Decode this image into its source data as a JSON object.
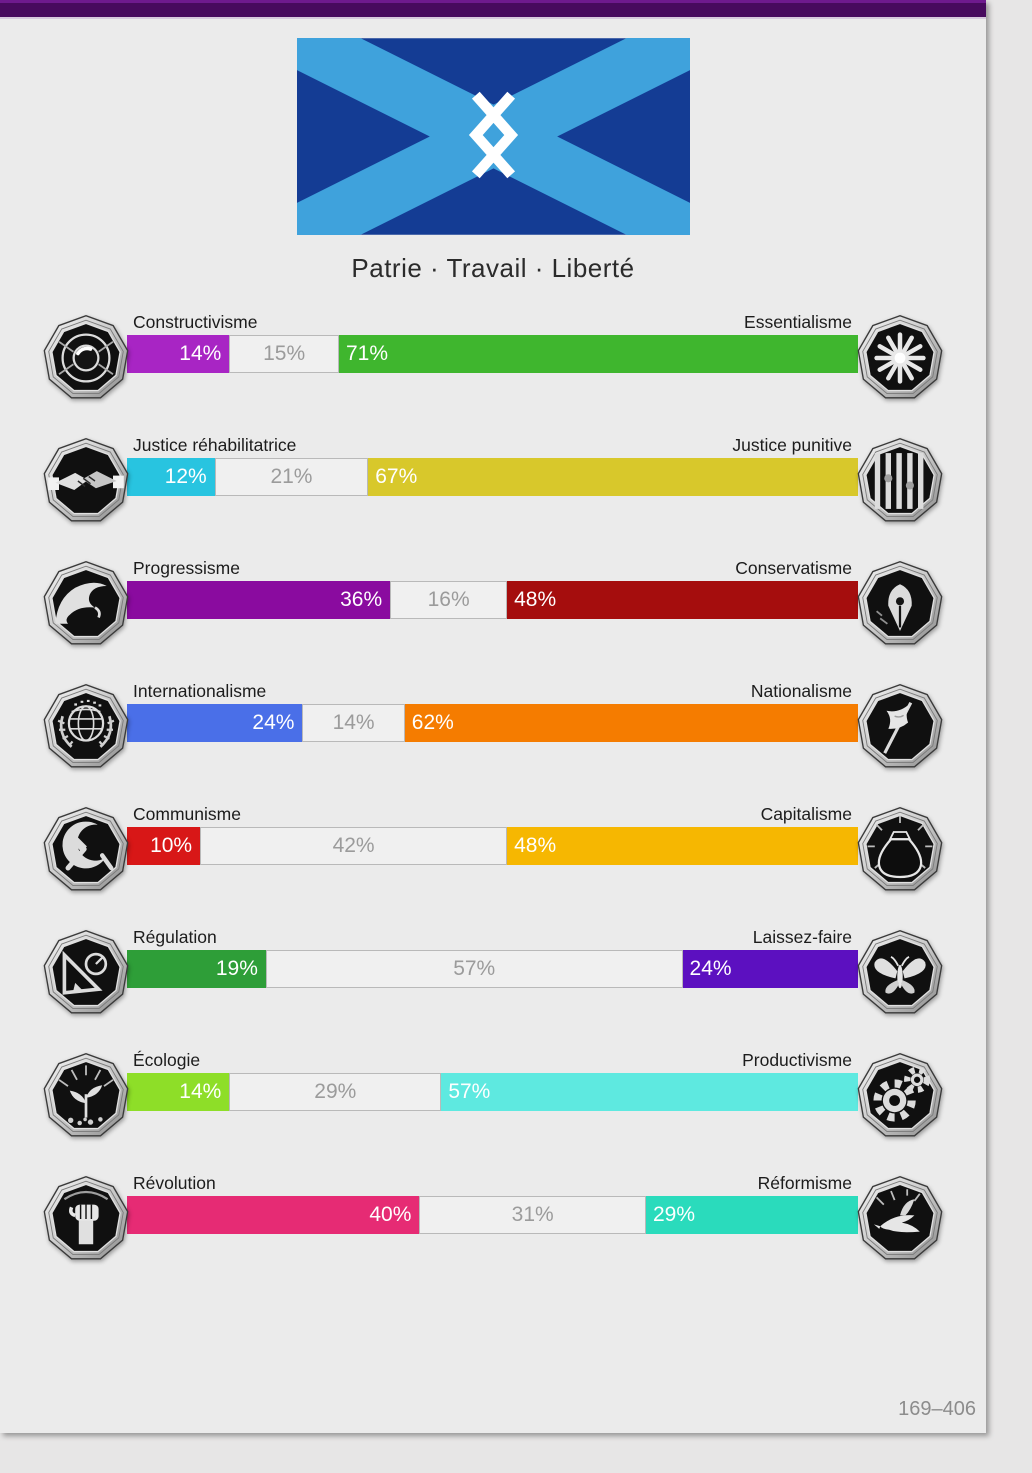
{
  "motto": "Patrie · Travail · Liberté",
  "flag": {
    "name": "nation-flag-saltire-with-double-chevron-emblem",
    "field_color": "#143c94",
    "saltire_color": "#3fa2dc",
    "emblem_color": "#ffffff"
  },
  "footer": {
    "counter": "169–406"
  },
  "chart_data": {
    "type": "bar",
    "title": "Political axes results",
    "categories": [
      "Constructivisme / Essentialisme",
      "Justice réhabilitatrice / Justice punitive",
      "Progressisme / Conservatisme",
      "Internationalisme / Nationalisme",
      "Communisme / Capitalisme",
      "Régulation / Laissez-faire",
      "Écologie / Productivisme",
      "Révolution / Réformisme"
    ],
    "series": [
      {
        "name": "left",
        "values": [
          14,
          12,
          36,
          24,
          10,
          19,
          14,
          40
        ]
      },
      {
        "name": "neutral",
        "values": [
          15,
          21,
          16,
          14,
          42,
          57,
          29,
          31
        ]
      },
      {
        "name": "right",
        "values": [
          71,
          67,
          48,
          62,
          48,
          24,
          57,
          29
        ]
      }
    ]
  },
  "axes": [
    {
      "left_label": "Constructivisme",
      "right_label": "Essentialisme",
      "left_icon": "eye-icon",
      "right_icon": "flower-icon",
      "left": {
        "label": "14%",
        "pct": 14,
        "color": "#a825c4"
      },
      "mid": {
        "label": "15%",
        "pct": 15
      },
      "right": {
        "label": "71%",
        "pct": 71,
        "color": "#3fb62e"
      }
    },
    {
      "left_label": "Justice réhabilitatrice",
      "right_label": "Justice punitive",
      "left_icon": "handshake-icon",
      "right_icon": "prison-bars-icon",
      "left": {
        "label": "12%",
        "pct": 12,
        "color": "#28c4e0"
      },
      "mid": {
        "label": "21%",
        "pct": 21
      },
      "right": {
        "label": "67%",
        "pct": 67,
        "color": "#d8c82b"
      }
    },
    {
      "left_label": "Progressisme",
      "right_label": "Conservatisme",
      "left_icon": "wave-icon",
      "right_icon": "pen-nib-icon",
      "left": {
        "label": "36%",
        "pct": 36,
        "color": "#8a0b9f"
      },
      "mid": {
        "label": "16%",
        "pct": 16
      },
      "right": {
        "label": "48%",
        "pct": 48,
        "color": "#a50d0d"
      }
    },
    {
      "left_label": "Internationalisme",
      "right_label": "Nationalisme",
      "left_icon": "globe-icon",
      "right_icon": "flag-icon",
      "left": {
        "label": "24%",
        "pct": 24,
        "color": "#4a6fe8"
      },
      "mid": {
        "label": "14%",
        "pct": 14
      },
      "right": {
        "label": "62%",
        "pct": 62,
        "color": "#f57c00"
      }
    },
    {
      "left_label": "Communisme",
      "right_label": "Capitalisme",
      "left_icon": "hammer-sickle-icon",
      "right_icon": "money-bag-icon",
      "left": {
        "label": "10%",
        "pct": 10,
        "color": "#d81717"
      },
      "mid": {
        "label": "42%",
        "pct": 42
      },
      "right": {
        "label": "48%",
        "pct": 48,
        "color": "#f6b701"
      }
    },
    {
      "left_label": "Régulation",
      "right_label": "Laissez-faire",
      "left_icon": "ruler-icon",
      "right_icon": "butterfly-icon",
      "left": {
        "label": "19%",
        "pct": 19,
        "color": "#2e9e38"
      },
      "mid": {
        "label": "57%",
        "pct": 57
      },
      "right": {
        "label": "24%",
        "pct": 24,
        "color": "#5c10c0"
      }
    },
    {
      "left_label": "Écologie",
      "right_label": "Productivisme",
      "left_icon": "plant-icon",
      "right_icon": "gears-icon",
      "left": {
        "label": "14%",
        "pct": 14,
        "color": "#8ede28"
      },
      "mid": {
        "label": "29%",
        "pct": 29
      },
      "right": {
        "label": "57%",
        "pct": 57,
        "color": "#5ee9e0"
      }
    },
    {
      "left_label": "Révolution",
      "right_label": "Réformisme",
      "left_icon": "fist-icon",
      "right_icon": "dove-icon",
      "left": {
        "label": "40%",
        "pct": 40,
        "color": "#e62b74"
      },
      "mid": {
        "label": "31%",
        "pct": 31
      },
      "right": {
        "label": "29%",
        "pct": 29,
        "color": "#2adbbc"
      }
    }
  ]
}
